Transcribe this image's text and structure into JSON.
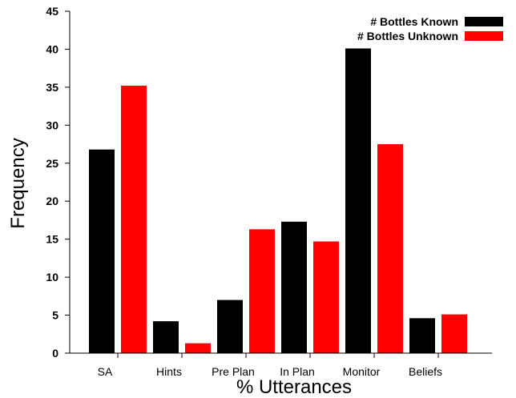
{
  "chart_data": {
    "type": "bar",
    "title": "",
    "xlabel": "% Utterances",
    "ylabel": "Frequency",
    "ylim": [
      0,
      45
    ],
    "yticks": [
      "0",
      "5",
      "10",
      "15",
      "20",
      "25",
      "30",
      "35",
      "40",
      "45"
    ],
    "categories": [
      "SA",
      "Hints",
      "Pre Plan",
      "In Plan",
      "Monitor",
      "Beliefs"
    ],
    "series": [
      {
        "name": "# Bottles Known",
        "color": "#000000",
        "values": [
          26.8,
          4.2,
          7.0,
          17.3,
          40.1,
          4.6
        ]
      },
      {
        "name": "# Bottles Unknown",
        "color": "#ff0000",
        "values": [
          35.2,
          1.3,
          16.3,
          14.7,
          27.5,
          5.1
        ]
      }
    ],
    "legend_position": "top-right",
    "grid": false
  }
}
